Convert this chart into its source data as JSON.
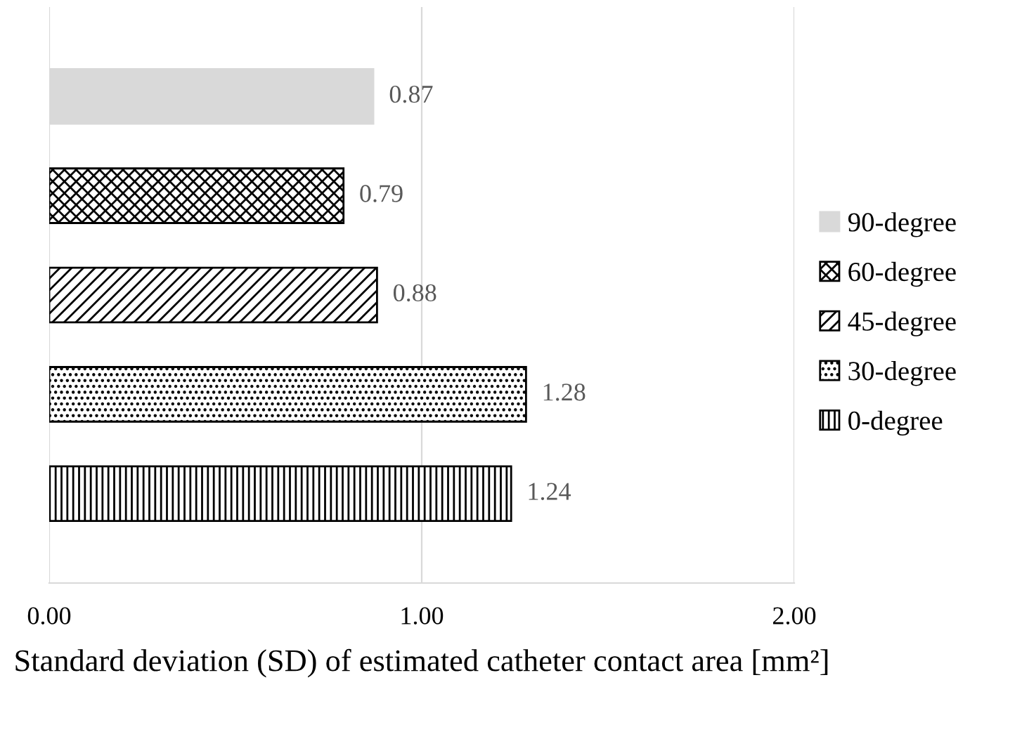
{
  "chart_data": {
    "type": "bar",
    "orientation": "horizontal",
    "xlabel": "Standard deviation (SD) of estimated catheter contact area [mm²]",
    "categories": [
      null,
      null,
      null,
      null,
      null
    ],
    "series": [
      {
        "name": "90-degree",
        "color": "#d9d9d9",
        "values": [
          0.87,
          null,
          null,
          null,
          null
        ]
      },
      {
        "name": "60-degree",
        "color": "#000000",
        "values": [
          null,
          0.79,
          null,
          null,
          null
        ]
      },
      {
        "name": "45-degree",
        "color": "#000000",
        "values": [
          null,
          null,
          0.88,
          null,
          null
        ]
      },
      {
        "name": "30-degree",
        "color": "#000000",
        "values": [
          null,
          null,
          null,
          1.28,
          null
        ]
      },
      {
        "name": "0-degree",
        "color": "#000000",
        "values": [
          null,
          null,
          null,
          null,
          1.24
        ]
      }
    ],
    "xlim": [
      0,
      2
    ],
    "xticks": [
      {
        "value": 0,
        "label": "0.00"
      },
      {
        "value": 1,
        "label": "1.00"
      },
      {
        "value": 2,
        "label": "2.00"
      }
    ],
    "grid": "x",
    "legend": "right",
    "data_labels": true,
    "tick_labels": "x"
  }
}
